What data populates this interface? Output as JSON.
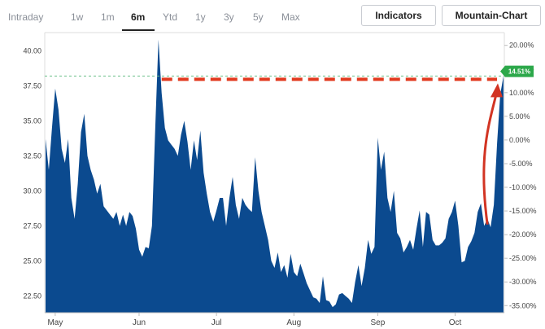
{
  "tabs": [
    {
      "label": "Intraday",
      "active": false
    },
    {
      "label": "1w",
      "active": false
    },
    {
      "label": "1m",
      "active": false
    },
    {
      "label": "6m",
      "active": true
    },
    {
      "label": "Ytd",
      "active": false
    },
    {
      "label": "1y",
      "active": false
    },
    {
      "label": "3y",
      "active": false
    },
    {
      "label": "5y",
      "active": false
    },
    {
      "label": "Max",
      "active": false
    }
  ],
  "buttons": {
    "indicators": "Indicators",
    "mountain_chart": "Mountain-Chart"
  },
  "colors": {
    "area": "#0b4a8f",
    "dashed": "#e23a1f",
    "arrow": "#d23423",
    "badge": "#2ca84a",
    "refline": "#6cc08a"
  },
  "chart_data": {
    "type": "area",
    "x_labels": [
      "May",
      "Jun",
      "Jul",
      "Aug",
      "Sep",
      "Oct"
    ],
    "y_left_ticks": [
      "22.50",
      "25.00",
      "27.50",
      "30.00",
      "32.50",
      "35.00",
      "37.50",
      "40.00"
    ],
    "y_left_range": [
      21.3,
      41.3
    ],
    "y_right_ticks": [
      "-35.00%",
      "-30.00%",
      "-25.00%",
      "-20.00%",
      "-15.00%",
      "-10.00%",
      "-5.00%",
      "0.00%",
      "5.00%",
      "10.00%",
      "15.00%",
      "20.00%"
    ],
    "y_right_range": [
      -36.5,
      22.7
    ],
    "badge_label": "14.51%",
    "reference_value": 38.2,
    "series": [
      {
        "name": "price",
        "values": [
          33.7,
          31.5,
          34.5,
          37.3,
          35.8,
          33.0,
          32.0,
          33.7,
          29.5,
          28.0,
          30.5,
          34.2,
          35.5,
          32.5,
          31.5,
          30.8,
          29.8,
          30.5,
          28.9,
          28.6,
          28.3,
          28.0,
          28.5,
          27.5,
          28.3,
          27.5,
          28.5,
          28.2,
          27.3,
          25.8,
          25.3,
          26.0,
          25.9,
          27.5,
          34.4,
          40.8,
          37.0,
          34.5,
          33.6,
          33.3,
          33.0,
          32.5,
          34.0,
          35.0,
          33.5,
          31.5,
          33.6,
          32.2,
          34.3,
          31.3,
          29.8,
          28.5,
          27.8,
          28.6,
          29.5,
          29.5,
          27.5,
          29.5,
          31.0,
          29.0,
          28.0,
          29.5,
          29.0,
          28.7,
          28.5,
          32.4,
          30.0,
          28.5,
          27.5,
          26.5,
          25.0,
          24.5,
          25.6,
          24.2,
          24.7,
          23.8,
          25.5,
          24.2,
          23.9,
          24.8,
          24.1,
          23.4,
          22.9,
          22.4,
          22.3,
          22.0,
          23.9,
          22.2,
          22.1,
          21.7,
          21.9,
          22.6,
          22.7,
          22.5,
          22.3,
          22.0,
          23.5,
          24.7,
          23.2,
          24.5,
          26.5,
          25.5,
          26.0,
          33.8,
          31.5,
          32.8,
          29.5,
          28.5,
          30.0,
          27.0,
          26.6,
          25.6,
          26.0,
          26.5,
          25.8,
          27.3,
          28.6,
          26.0,
          28.5,
          28.3,
          26.5,
          26.1,
          26.1,
          26.3,
          26.6,
          28.0,
          28.5,
          29.3,
          27.5,
          24.9,
          25.0,
          26.0,
          26.4,
          27.0,
          28.5,
          29.1,
          27.5,
          28.0,
          27.4,
          29.0,
          33.4,
          36.9,
          38.2
        ]
      }
    ]
  }
}
